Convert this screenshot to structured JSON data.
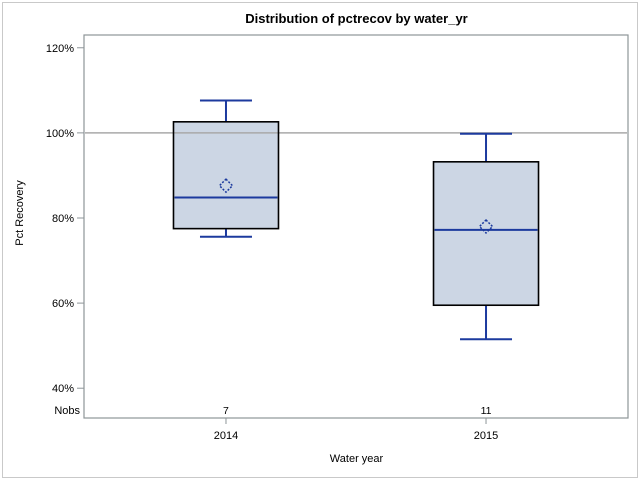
{
  "chart_data": {
    "type": "boxplot",
    "title": "Distribution of pctrecov by water_yr",
    "xlabel": "Water year",
    "ylabel": "Pct Recovery",
    "categories": [
      "2014",
      "2015"
    ],
    "y_ticks": [
      {
        "value": 120,
        "label": "120%"
      },
      {
        "value": 100,
        "label": "100%"
      },
      {
        "value": 80,
        "label": "80%"
      },
      {
        "value": 60,
        "label": "60%"
      },
      {
        "value": 40,
        "label": "40%"
      }
    ],
    "ylim": [
      33,
      123
    ],
    "ref_line_value": 100,
    "grid": false,
    "legend": "none",
    "nobs_label": "Nobs",
    "series": [
      {
        "category": "2014",
        "nobs": "7",
        "min": 75.6,
        "q1": 77.5,
        "median": 84.8,
        "mean": 87.6,
        "q3": 102.6,
        "max": 107.6
      },
      {
        "category": "2015",
        "nobs": "11",
        "min": 51.5,
        "q1": 59.5,
        "median": 77.2,
        "mean": 78.0,
        "q3": 93.2,
        "max": 99.8
      }
    ],
    "colors": {
      "box_fill": "#ccd6e4",
      "box_border": "#000000",
      "whisker_blue": "#1c3a9e",
      "ref_line": "#a9a9a9",
      "frame": "#8e9598",
      "text": "#000000"
    }
  }
}
